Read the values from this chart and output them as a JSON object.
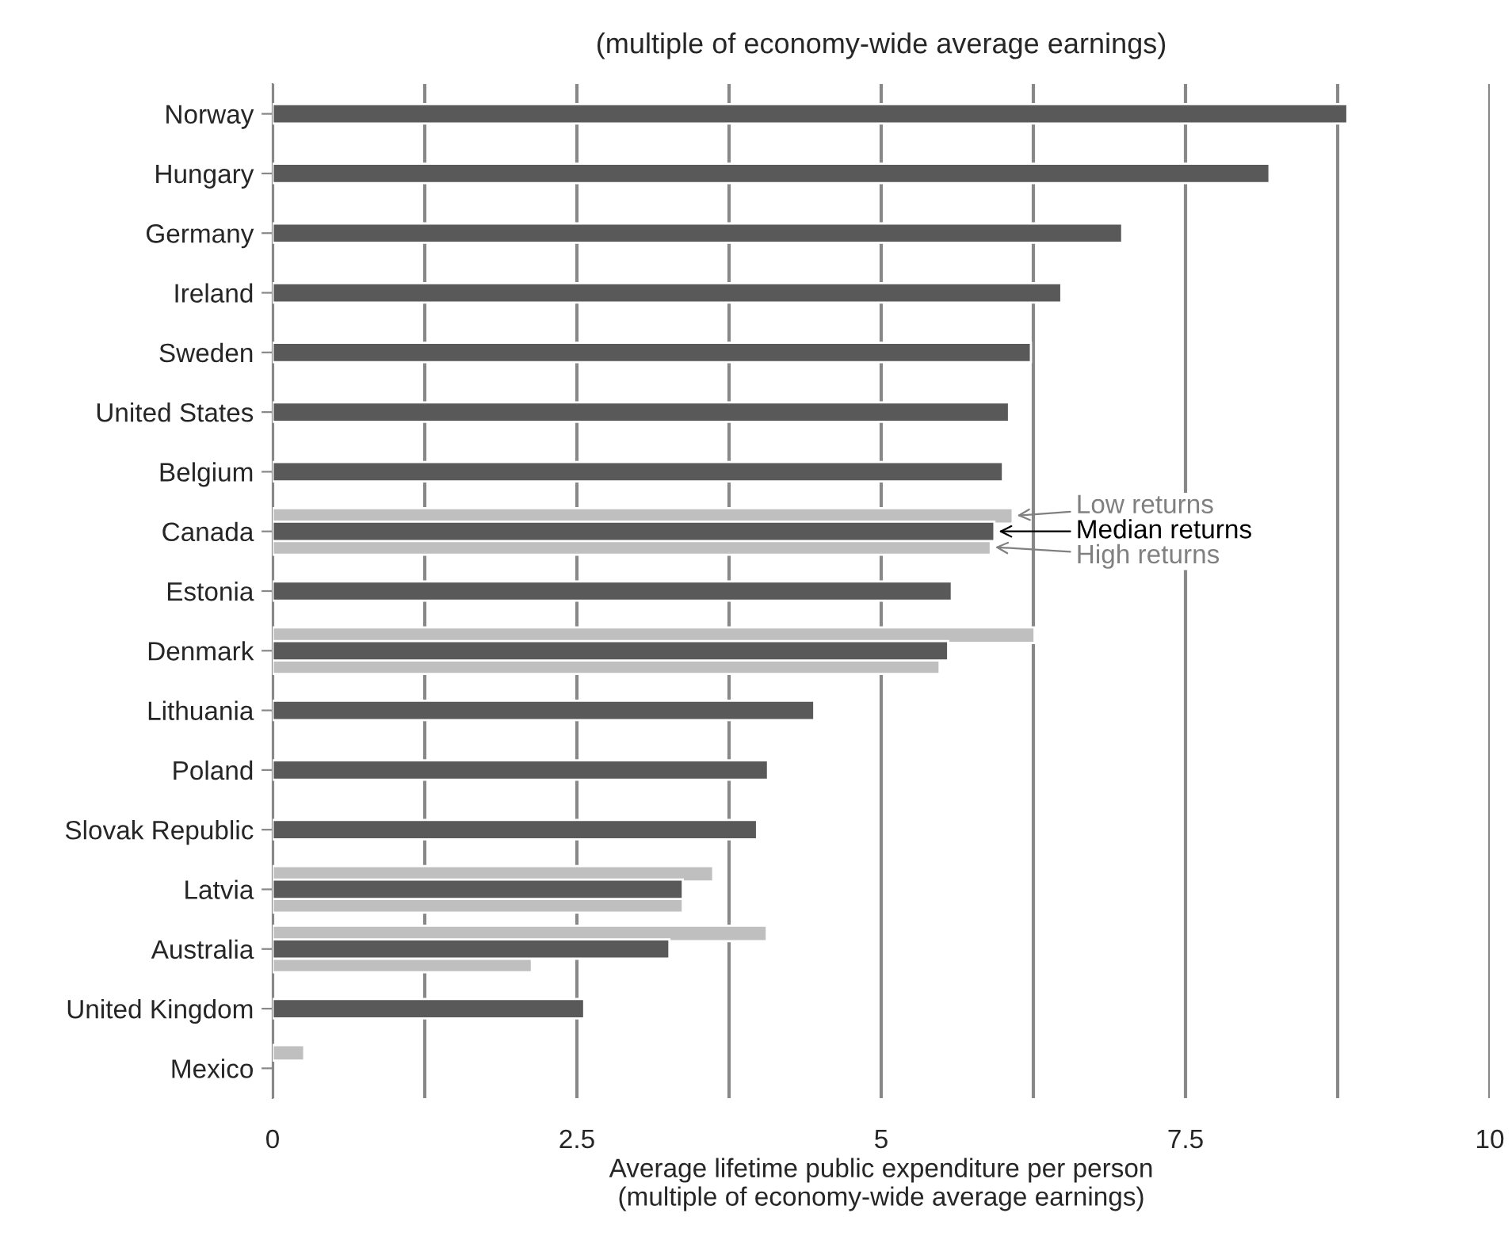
{
  "chart_data": {
    "type": "bar",
    "orientation": "horizontal",
    "title": "(multiple of economy-wide average earnings)",
    "xlabel": "Average lifetime public expenditure per person\n(multiple of economy-wide average earnings)",
    "categories": [
      "Norway",
      "Hungary",
      "Germany",
      "Ireland",
      "Sweden",
      "United States",
      "Belgium",
      "Canada",
      "Estonia",
      "Denmark",
      "Lithuania",
      "Poland",
      "Slovak Republic",
      "Latvia",
      "Australia",
      "United Kingdom",
      "Mexico"
    ],
    "series": [
      {
        "name": "Low returns",
        "color": "#bfbfbf",
        "values": [
          null,
          null,
          null,
          null,
          null,
          null,
          null,
          6.08,
          null,
          6.26,
          null,
          null,
          null,
          3.62,
          4.06,
          null,
          0.26
        ]
      },
      {
        "name": "Median returns",
        "color": "#595959",
        "values": [
          8.83,
          8.19,
          6.98,
          6.48,
          6.23,
          6.05,
          6.0,
          5.93,
          5.58,
          5.55,
          4.45,
          4.07,
          3.98,
          3.37,
          3.26,
          2.56,
          null
        ]
      },
      {
        "name": "High returns",
        "color": "#bfbfbf",
        "values": [
          null,
          null,
          null,
          null,
          null,
          null,
          null,
          5.9,
          null,
          5.48,
          null,
          null,
          null,
          3.37,
          2.13,
          null,
          null
        ]
      }
    ],
    "xlim": [
      0,
      10
    ],
    "xticks": [
      0,
      {
        "value": 1.25,
        "label": null
      },
      2.5,
      {
        "value": 3.75,
        "label": null
      },
      5,
      {
        "value": 6.25,
        "label": null
      },
      7.5,
      {
        "value": 8.75,
        "label": null
      },
      10
    ],
    "grid": "x",
    "legend": false
  }
}
